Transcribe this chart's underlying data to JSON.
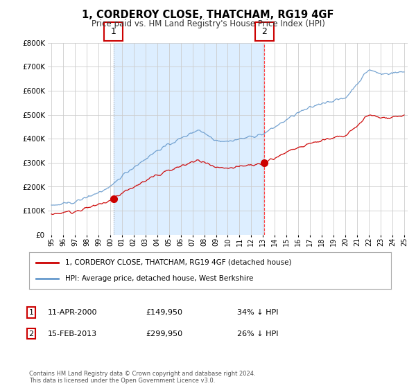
{
  "title": "1, CORDEROY CLOSE, THATCHAM, RG19 4GF",
  "subtitle": "Price paid vs. HM Land Registry's House Price Index (HPI)",
  "x_start_year": 1995,
  "x_end_year": 2025,
  "y_min": 0,
  "y_max": 800000,
  "y_ticks": [
    0,
    100000,
    200000,
    300000,
    400000,
    500000,
    600000,
    700000,
    800000
  ],
  "purchase1": {
    "date_num": 2000.28,
    "value": 149950,
    "label": "1",
    "display_date": "11-APR-2000",
    "pct": "34% ↓ HPI"
  },
  "purchase2": {
    "date_num": 2013.12,
    "value": 299950,
    "label": "2",
    "display_date": "15-FEB-2013",
    "pct": "26% ↓ HPI"
  },
  "hpi_color": "#6699cc",
  "price_color": "#cc0000",
  "vline1_color": "#aaaaaa",
  "vline2_color": "#ff4444",
  "fill_color": "#ddeeff",
  "grid_color": "#cccccc",
  "legend_label_price": "1, CORDEROY CLOSE, THATCHAM, RG19 4GF (detached house)",
  "legend_label_hpi": "HPI: Average price, detached house, West Berkshire",
  "footer": "Contains HM Land Registry data © Crown copyright and database right 2024.\nThis data is licensed under the Open Government Licence v3.0.",
  "background_color": "#ffffff",
  "table_rows": [
    [
      "1",
      "11-APR-2000",
      "£149,950",
      "34% ↓ HPI"
    ],
    [
      "2",
      "15-FEB-2013",
      "£299,950",
      "26% ↓ HPI"
    ]
  ]
}
